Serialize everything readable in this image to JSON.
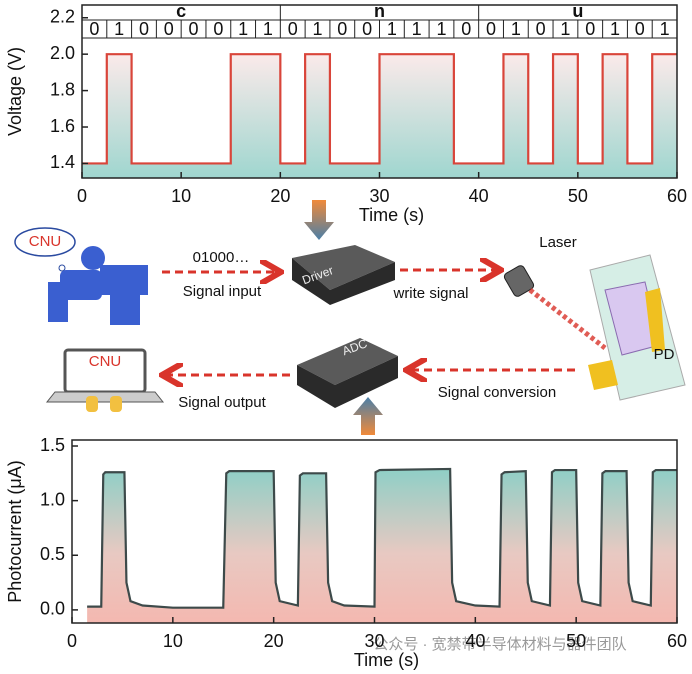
{
  "chart_data": [
    {
      "type": "line",
      "ylabel": "Voltage (V)",
      "xlabel": "Time (s)",
      "xlim": [
        0,
        60
      ],
      "ylim": [
        1.32,
        2.27
      ],
      "xticks": [
        0,
        10,
        20,
        30,
        40,
        50,
        60
      ],
      "yticks": [
        1.4,
        1.6,
        1.8,
        {
          "value": 2.0,
          "label": "2.0"
        },
        2.2
      ],
      "bit_groups": [
        {
          "letter": "c",
          "bits": [
            0,
            1,
            0,
            0,
            0,
            0,
            1,
            1
          ]
        },
        {
          "letter": "n",
          "bits": [
            0,
            1,
            0,
            0,
            1,
            1,
            1,
            0
          ]
        },
        {
          "letter": "u",
          "bits": [
            0,
            1,
            0,
            1,
            0,
            1,
            0,
            1
          ]
        }
      ],
      "series": [
        {
          "color": "#d9453a",
          "x": [
            0,
            2.5,
            2.5,
            5,
            5,
            15,
            15,
            20,
            20,
            22.5,
            22.5,
            25,
            25,
            30,
            30,
            37.5,
            37.5,
            42.5,
            42.5,
            45,
            45,
            47.5,
            47.5,
            50,
            50,
            52.5,
            52.5,
            55,
            55,
            57.5,
            57.5,
            60
          ],
          "values": [
            1.4,
            1.4,
            2,
            2,
            1.4,
            1.4,
            2,
            2,
            1.4,
            1.4,
            2,
            2,
            1.4,
            1.4,
            2,
            2,
            1.4,
            1.4,
            2,
            2,
            1.4,
            1.4,
            2,
            2,
            1.4,
            1.4,
            2,
            2,
            1.4,
            1.4,
            2,
            2
          ]
        }
      ]
    },
    {
      "type": "line",
      "ylabel": "Photocurrent (μA)",
      "xlabel": "Time (s)",
      "xlim": [
        0,
        60
      ],
      "ylim": [
        -0.12,
        1.555
      ],
      "xticks": [
        0,
        10,
        20,
        30,
        40,
        50,
        60
      ],
      "yticks": [
        {
          "value": 0.0,
          "label": "0.0"
        },
        0.5,
        {
          "value": 1.0,
          "label": "1.0"
        },
        1.5
      ],
      "series": [
        {
          "color": "#3d4a4a",
          "x": [
            1.5,
            2.9,
            3.1,
            3.3,
            5.2,
            5.4,
            5.8,
            7,
            10,
            15,
            15.3,
            15.6,
            20,
            20.2,
            20.6,
            22.4,
            22.6,
            22.9,
            25.2,
            25.4,
            25.8,
            27,
            30,
            30.1,
            30.5,
            37.5,
            37.7,
            38.1,
            40,
            42.4,
            42.6,
            42.9,
            45,
            45.2,
            45.6,
            47.4,
            47.6,
            47.9,
            50,
            50.2,
            50.6,
            52.4,
            52.6,
            52.9,
            55,
            55.2,
            55.6,
            57.4,
            57.6,
            57.9,
            60
          ],
          "values": [
            0.03,
            0.03,
            1.24,
            1.26,
            1.26,
            0.25,
            0.08,
            0.04,
            0.02,
            0.02,
            1.25,
            1.27,
            1.27,
            0.25,
            0.08,
            0.04,
            1.23,
            1.25,
            1.25,
            0.25,
            0.08,
            0.04,
            0.03,
            1.26,
            1.28,
            1.29,
            0.25,
            0.08,
            0.04,
            0.03,
            1.24,
            1.26,
            1.27,
            0.25,
            0.08,
            0.04,
            1.26,
            1.28,
            1.28,
            0.25,
            0.08,
            0.04,
            1.25,
            1.27,
            1.27,
            0.25,
            0.08,
            0.04,
            1.26,
            1.28,
            1.28
          ]
        }
      ]
    }
  ],
  "diagram": {
    "cloud_label": "CNU",
    "laptop_label": "CNU",
    "input_bits": "01000…",
    "signal_input": "Signal input",
    "driver": "Driver",
    "write_signal": "write signal",
    "laser": "Laser",
    "pd": "PD",
    "adc": "ADC",
    "signal_conversion": "Signal conversion",
    "signal_output": "Signal output"
  },
  "watermark": "公众号 · 宽禁带半导体材料与器件团队"
}
